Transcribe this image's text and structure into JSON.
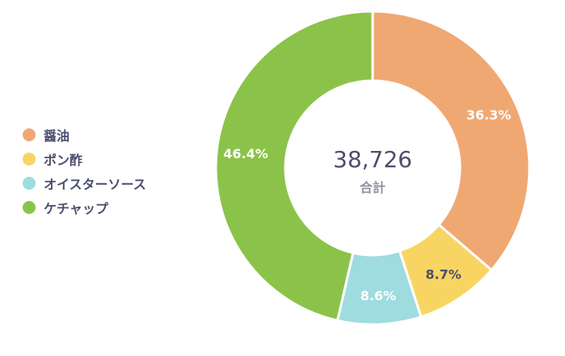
{
  "chart_data": {
    "type": "pie",
    "variant": "donut",
    "title": "",
    "total": {
      "value": "38,726",
      "label": "合計"
    },
    "legend_position": "left",
    "slices": [
      {
        "name": "醤油",
        "percent": 36.3,
        "percent_label": "36.3%",
        "color": "#f0a873",
        "label_color": "#ffffff"
      },
      {
        "name": "ポン酢",
        "percent": 8.7,
        "percent_label": "8.7%",
        "color": "#f8d563",
        "label_color": "#4b4f6b"
      },
      {
        "name": "オイスターソース",
        "percent": 8.6,
        "percent_label": "8.6%",
        "color": "#9fdcdf",
        "label_color": "#ffffff"
      },
      {
        "name": "ケチャップ",
        "percent": 46.4,
        "percent_label": "46.4%",
        "color": "#8bc34a",
        "label_color": "#ffffff"
      }
    ]
  }
}
